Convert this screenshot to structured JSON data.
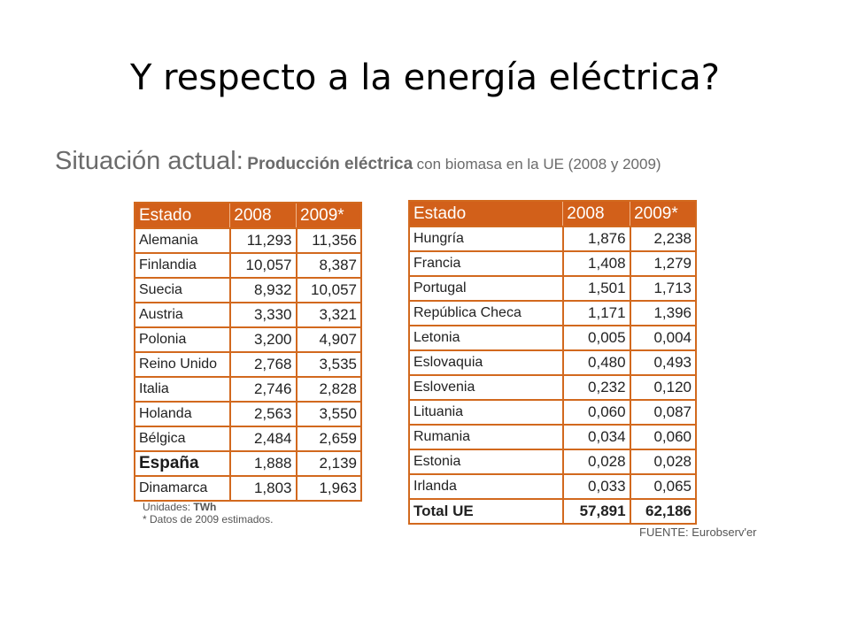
{
  "slide": {
    "title": "Y respecto a la energía eléctrica?"
  },
  "subtitle": {
    "lead": "Situación actual:",
    "bold": "Producción eléctrica",
    "rest": "con biomasa en la UE (2008 y 2009)"
  },
  "table_left": {
    "headers": [
      "Estado",
      "2008",
      "2009*"
    ],
    "rows": [
      {
        "name": "Alemania",
        "v2008": "11,293",
        "v2009": "11,356"
      },
      {
        "name": "Finlandia",
        "v2008": "10,057",
        "v2009": "8,387"
      },
      {
        "name": "Suecia",
        "v2008": "8,932",
        "v2009": "10,057"
      },
      {
        "name": "Austria",
        "v2008": "3,330",
        "v2009": "3,321"
      },
      {
        "name": "Polonia",
        "v2008": "3,200",
        "v2009": "4,907"
      },
      {
        "name": "Reino Unido",
        "v2008": "2,768",
        "v2009": "3,535"
      },
      {
        "name": "Italia",
        "v2008": "2,746",
        "v2009": "2,828"
      },
      {
        "name": "Holanda",
        "v2008": "2,563",
        "v2009": "3,550"
      },
      {
        "name": "Bélgica",
        "v2008": "2,484",
        "v2009": "2,659"
      },
      {
        "name": "España",
        "v2008": "1,888",
        "v2009": "2,139"
      },
      {
        "name": "Dinamarca",
        "v2008": "1,803",
        "v2009": "1,963"
      }
    ]
  },
  "table_right": {
    "headers": [
      "Estado",
      "2008",
      "2009*"
    ],
    "rows": [
      {
        "name": "Hungría",
        "v2008": "1,876",
        "v2009": "2,238"
      },
      {
        "name": "Francia",
        "v2008": "1,408",
        "v2009": "1,279"
      },
      {
        "name": "Portugal",
        "v2008": "1,501",
        "v2009": "1,713"
      },
      {
        "name": "República Checa",
        "v2008": "1,171",
        "v2009": "1,396"
      },
      {
        "name": "Letonia",
        "v2008": "0,005",
        "v2009": "0,004"
      },
      {
        "name": "Eslovaquia",
        "v2008": "0,480",
        "v2009": "0,493"
      },
      {
        "name": "Eslovenia",
        "v2008": "0,232",
        "v2009": "0,120"
      },
      {
        "name": "Lituania",
        "v2008": "0,060",
        "v2009": "0,087"
      },
      {
        "name": "Rumania",
        "v2008": "0,034",
        "v2009": "0,060"
      },
      {
        "name": "Estonia",
        "v2008": "0,028",
        "v2009": "0,028"
      },
      {
        "name": "Irlanda",
        "v2008": "0,033",
        "v2009": "0,065"
      },
      {
        "name": "Total UE",
        "v2008": "57,891",
        "v2009": "62,186"
      }
    ]
  },
  "notes": {
    "units_label": "Unidades:",
    "units_value": "TWh",
    "footnote": "* Datos de 2009 estimados."
  },
  "source": "FUENTE: Eurobserv'er",
  "colors": {
    "header_bg": "#d2601a",
    "border": "#d2691e"
  }
}
